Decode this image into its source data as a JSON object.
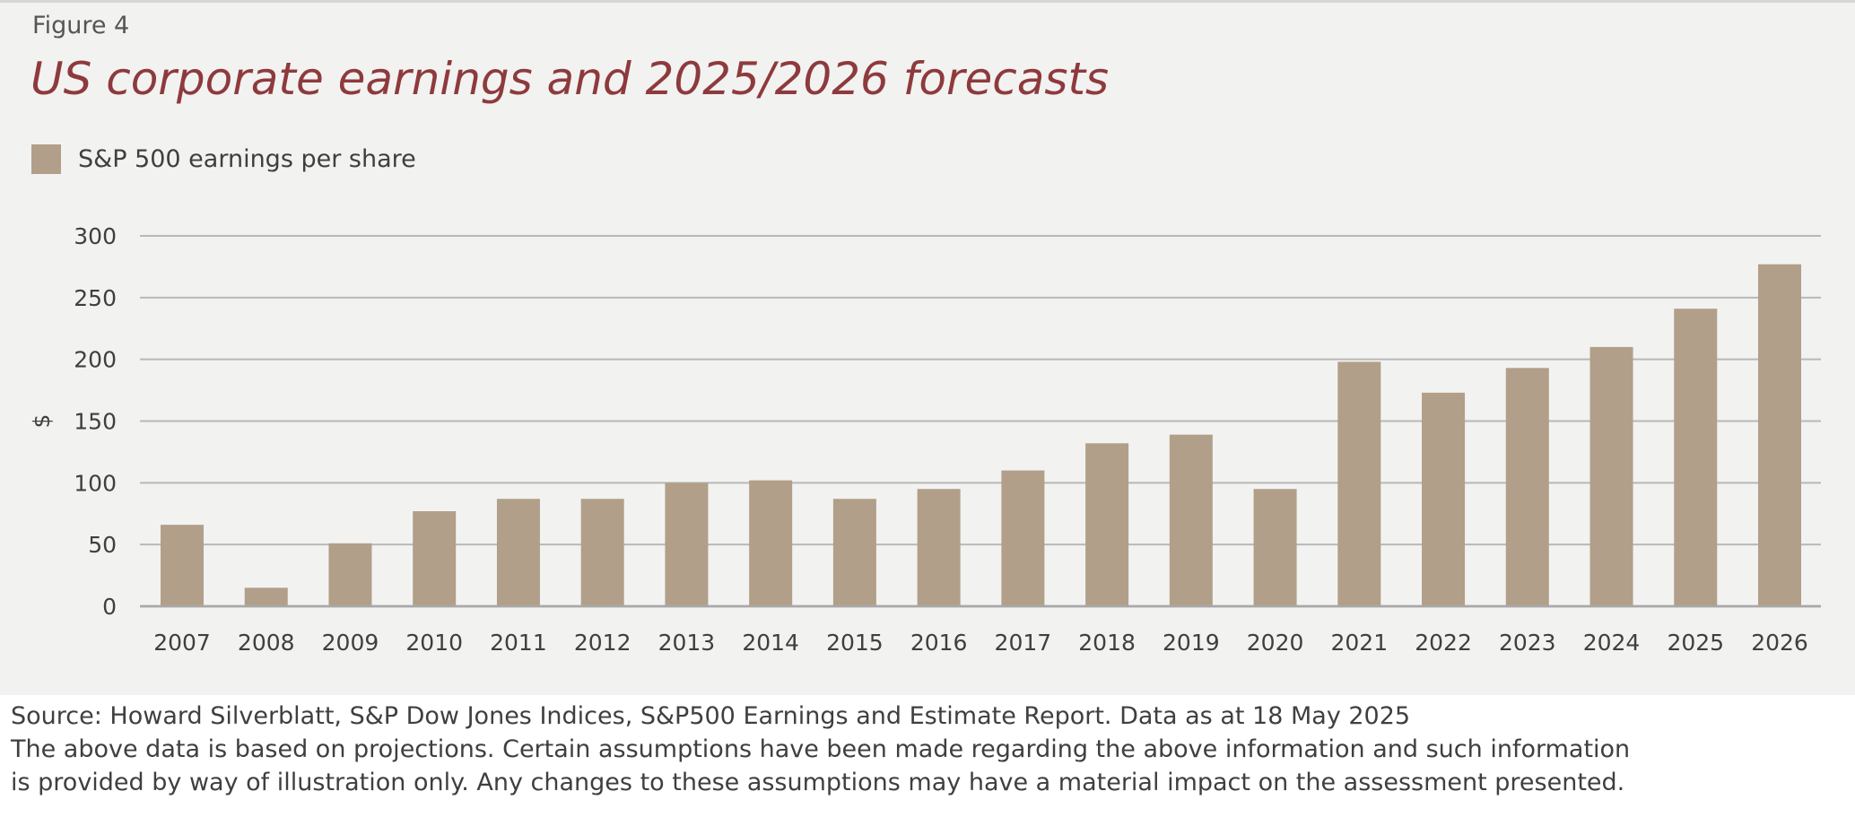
{
  "figure_label": "Figure 4",
  "footer": {
    "source": "Source: Howard Silverblatt, S&P Dow Jones Indices, S&P500 Earnings and Estimate Report. Data as at 18 May 2025",
    "disclaimer_line1": "The above data is based on projections. Certain assumptions have been made regarding the above information and such information",
    "disclaimer_line2": "is provided by way of illustration only. Any changes to these assumptions may have a material impact on the assessment presented."
  },
  "chart_data": {
    "type": "bar",
    "title": "US corporate earnings and 2025/2026 forecasts",
    "xlabel": "",
    "ylabel": "$",
    "ylim": [
      0,
      300
    ],
    "yticks": [
      0,
      50,
      100,
      150,
      200,
      250,
      300
    ],
    "grid": true,
    "legend_position": "top-left",
    "categories": [
      "2007",
      "2008",
      "2009",
      "2010",
      "2011",
      "2012",
      "2013",
      "2014",
      "2015",
      "2016",
      "2017",
      "2018",
      "2019",
      "2020",
      "2021",
      "2022",
      "2023",
      "2024",
      "2025",
      "2026"
    ],
    "series": [
      {
        "name": "S&P 500 earnings per share",
        "color": "#b29f89",
        "values": [
          66,
          15,
          51,
          77,
          87,
          87,
          100,
          102,
          87,
          95,
          110,
          132,
          139,
          95,
          198,
          173,
          193,
          210,
          241,
          277
        ]
      }
    ]
  }
}
